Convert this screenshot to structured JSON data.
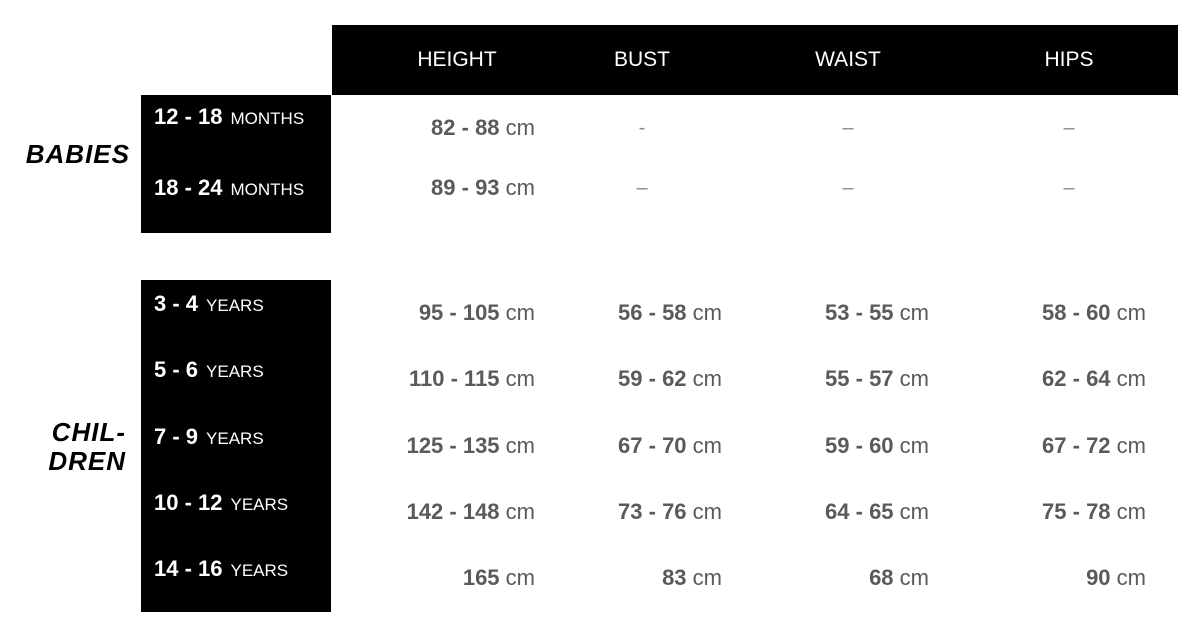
{
  "columns": [
    "HEIGHT",
    "BUST",
    "WAIST",
    "HIPS"
  ],
  "groups": [
    {
      "name": "BABIES",
      "rows": [
        {
          "range": "12 - 18",
          "unit": "MONTHS",
          "values": [
            {
              "n": "82 - 88",
              "u": "cm"
            },
            {
              "dash": "-"
            },
            {
              "dash": "–"
            },
            {
              "dash": "–"
            }
          ]
        },
        {
          "range": "18 - 24",
          "unit": "MONTHS",
          "values": [
            {
              "n": "89 - 93",
              "u": "cm"
            },
            {
              "dash": "–"
            },
            {
              "dash": "–"
            },
            {
              "dash": "–"
            }
          ]
        }
      ]
    },
    {
      "name_line1": "CHIL-",
      "name_line2": "DREN",
      "rows": [
        {
          "range": "3 - 4",
          "unit": "YEARS",
          "values": [
            {
              "n": "95 - 105",
              "u": "cm"
            },
            {
              "n": "56 - 58",
              "u": "cm"
            },
            {
              "n": "53 - 55",
              "u": "cm"
            },
            {
              "n": "58 - 60",
              "u": "cm"
            }
          ]
        },
        {
          "range": "5 - 6",
          "unit": "YEARS",
          "values": [
            {
              "n": "110 - 115",
              "u": "cm"
            },
            {
              "n": "59 - 62",
              "u": "cm"
            },
            {
              "n": "55 - 57",
              "u": "cm"
            },
            {
              "n": "62 - 64",
              "u": "cm"
            }
          ]
        },
        {
          "range": "7 - 9",
          "unit": "YEARS",
          "values": [
            {
              "n": "125 - 135",
              "u": "cm"
            },
            {
              "n": "67 - 70",
              "u": "cm"
            },
            {
              "n": "59 - 60",
              "u": "cm"
            },
            {
              "n": "67 - 72",
              "u": "cm"
            }
          ]
        },
        {
          "range": "10 - 12",
          "unit": "YEARS",
          "values": [
            {
              "n": "142 - 148",
              "u": "cm"
            },
            {
              "n": "73 - 76",
              "u": "cm"
            },
            {
              "n": "64 - 65",
              "u": "cm"
            },
            {
              "n": "75 - 78",
              "u": "cm"
            }
          ]
        },
        {
          "range": "14 - 16",
          "unit": "YEARS",
          "values": [
            {
              "n": "165",
              "u": "cm"
            },
            {
              "n": "83",
              "u": "cm"
            },
            {
              "n": "68",
              "u": "cm"
            },
            {
              "n": "90",
              "u": "cm"
            }
          ]
        }
      ]
    }
  ]
}
